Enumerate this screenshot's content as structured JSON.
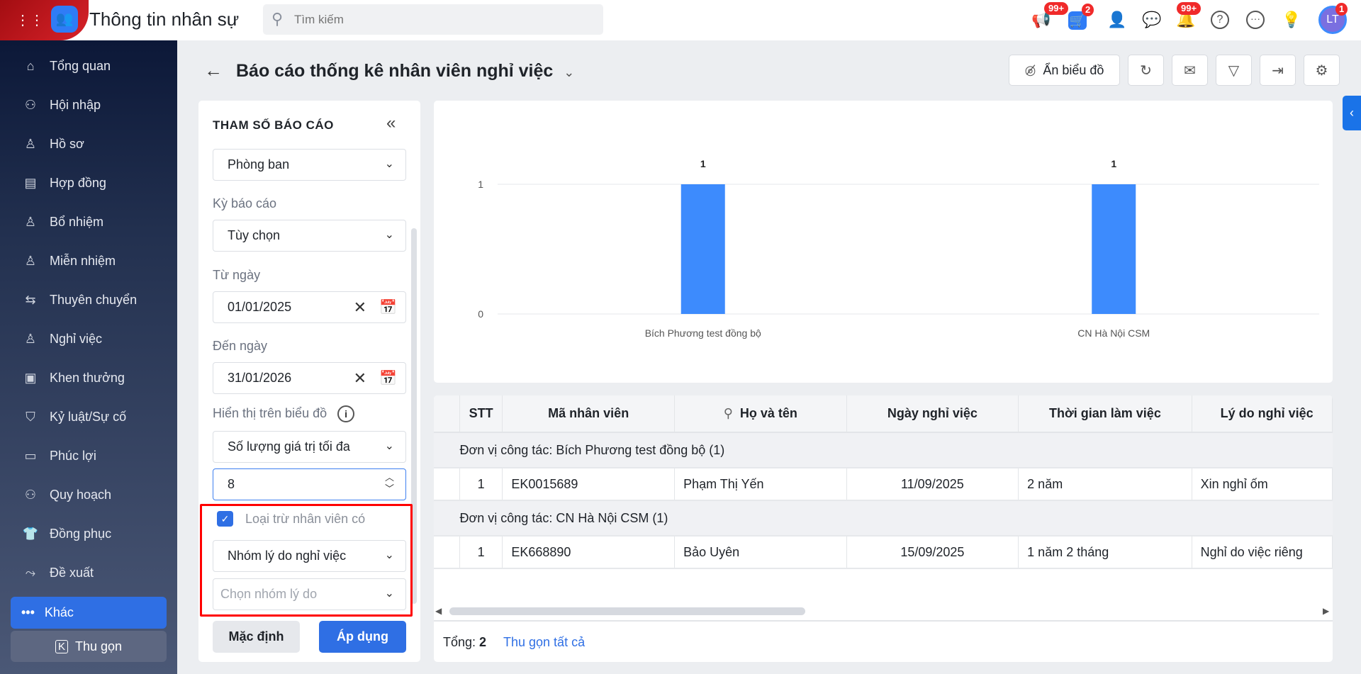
{
  "app": {
    "title": "Thông tin nhân sự",
    "search_placeholder": "Tìm kiếm"
  },
  "topbar": {
    "badges": {
      "announcements": "99+",
      "cart": "2",
      "notifications": "99+",
      "avatar": "1"
    },
    "avatar_initials": "LT"
  },
  "sidebar": {
    "items": [
      {
        "label": "Tổng quan",
        "icon": "home-icon"
      },
      {
        "label": "Hội nhập",
        "icon": "people-icon"
      },
      {
        "label": "Hồ sơ",
        "icon": "user-icon"
      },
      {
        "label": "Hợp đồng",
        "icon": "document-icon"
      },
      {
        "label": "Bổ nhiệm",
        "icon": "user-plus-icon"
      },
      {
        "label": "Miễn nhiệm",
        "icon": "user-minus-icon"
      },
      {
        "label": "Thuyên chuyển",
        "icon": "transfer-icon"
      },
      {
        "label": "Nghỉ việc",
        "icon": "user-x-icon"
      },
      {
        "label": "Khen thưởng",
        "icon": "award-icon"
      },
      {
        "label": "Kỷ luật/Sự cố",
        "icon": "shield-icon"
      },
      {
        "label": "Phúc lợi",
        "icon": "benefit-icon"
      },
      {
        "label": "Quy hoạch",
        "icon": "plan-icon"
      },
      {
        "label": "Đồng phục",
        "icon": "shirt-icon"
      },
      {
        "label": "Đề xuất",
        "icon": "route-icon"
      }
    ],
    "more_label": "Khác",
    "collapse_label": "Thu gọn"
  },
  "header": {
    "title": "Báo cáo thống kê nhân viên nghỉ việc",
    "hide_chart_label": "Ẩn biểu đồ"
  },
  "params": {
    "title": "THAM SỐ BÁO CÁO",
    "group_by": "Phòng ban",
    "period_label": "Kỳ báo cáo",
    "period": "Tùy chọn",
    "from_label": "Từ ngày",
    "from": "01/01/2025",
    "to_label": "Đến ngày",
    "to": "31/01/2026",
    "display_label": "Hiển thị trên biểu đồ",
    "display": "Số lượng giá trị tối đa",
    "max_value": "8",
    "exclude_label": "Loại trừ nhân viên có",
    "exclude_checked": true,
    "exclude_type": "Nhóm lý do nghỉ việc",
    "reason_placeholder": "Chọn nhóm lý do",
    "default_label": "Mặc định",
    "apply_label": "Áp dụng"
  },
  "chart_data": {
    "type": "bar",
    "categories": [
      "Bích Phương test đồng bộ",
      "CN Hà Nội CSM"
    ],
    "values": [
      1,
      1
    ],
    "data_labels": [
      "1",
      "1"
    ],
    "yticks": [
      "0",
      "1"
    ],
    "ylim": [
      0,
      1
    ],
    "grid": true,
    "color": "#3d8bfd"
  },
  "table": {
    "columns": [
      "STT",
      "Mã nhân viên",
      "Họ và tên",
      "Ngày nghỉ việc",
      "Thời gian làm việc",
      "Lý do nghỉ việc"
    ],
    "groups": [
      {
        "label": "Đơn vị công tác:  Bích Phương test đồng bộ (1)",
        "rows": [
          [
            "1",
            "EK0015689",
            "Phạm Thị Yến",
            "11/09/2025",
            "2 năm",
            "Xin nghỉ ốm"
          ]
        ]
      },
      {
        "label": "Đơn vị công tác:  CN Hà Nội CSM (1)",
        "rows": [
          [
            "1",
            "EK668890",
            "Bảo Uyên",
            "15/09/2025",
            "1 năm 2 tháng",
            "Nghỉ do việc riêng"
          ]
        ]
      }
    ],
    "total_label": "Tổng:",
    "total": "2",
    "collapse_all": "Thu gọn tất cả"
  }
}
